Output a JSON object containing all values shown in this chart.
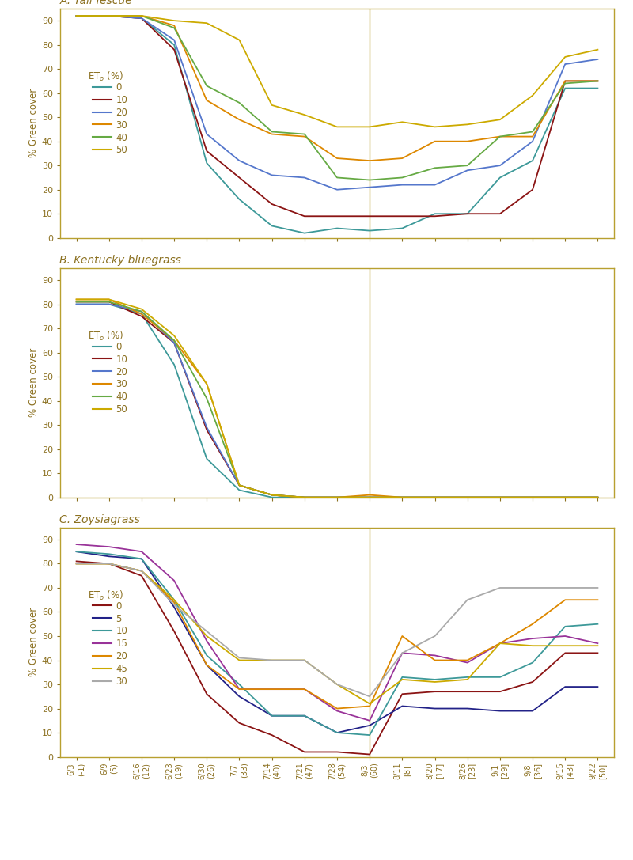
{
  "x_labels": [
    "6/3\n(-1)",
    "6/9\n(5)",
    "6/16\n(12)",
    "6/23\n(19)",
    "6/30\n(26)",
    "7/7\n(33)",
    "7/14\n(40)",
    "7/21\n(47)",
    "7/28\n(54)",
    "8/3\n(60)",
    "8/11\n[8]",
    "8/20\n[17]",
    "8/26\n[23]",
    "9/1\n[29]",
    "9/8\n[36]",
    "9/15\n[43]",
    "9/22\n[50]"
  ],
  "vline_index": 9,
  "panel_A": {
    "title": "A. Tall fescue",
    "series": {
      "0": [
        92,
        92,
        91,
        80,
        31,
        16,
        5,
        2,
        4,
        3,
        4,
        10,
        10,
        25,
        32,
        62,
        62
      ],
      "10": [
        92,
        92,
        91,
        78,
        36,
        25,
        14,
        9,
        9,
        9,
        9,
        9,
        10,
        10,
        20,
        65,
        65
      ],
      "20": [
        92,
        92,
        91,
        82,
        43,
        32,
        26,
        25,
        20,
        21,
        22,
        22,
        28,
        30,
        40,
        72,
        74
      ],
      "30": [
        92,
        92,
        92,
        88,
        57,
        49,
        43,
        42,
        33,
        32,
        33,
        40,
        40,
        42,
        42,
        65,
        65
      ],
      "40": [
        92,
        92,
        92,
        87,
        63,
        56,
        44,
        43,
        25,
        24,
        25,
        29,
        30,
        42,
        44,
        64,
        65
      ],
      "50": [
        92,
        92,
        92,
        90,
        89,
        82,
        55,
        51,
        46,
        46,
        48,
        46,
        47,
        49,
        59,
        75,
        78
      ]
    },
    "colors": {
      "0": "#3d9999",
      "10": "#8b1414",
      "20": "#5577cc",
      "30": "#dd8800",
      "40": "#66aa44",
      "50": "#ccaa00"
    },
    "legend_labels": [
      "0",
      "10",
      "20",
      "30",
      "40",
      "50"
    ]
  },
  "panel_B": {
    "title": "B. Kentucky bluegrass",
    "series": {
      "0": [
        80,
        80,
        76,
        55,
        16,
        3,
        0,
        0,
        0,
        0,
        0,
        0,
        0,
        0,
        0,
        0,
        0
      ],
      "10": [
        81,
        81,
        75,
        64,
        28,
        5,
        1,
        0,
        0,
        0,
        0,
        0,
        0,
        0,
        0,
        0,
        0
      ],
      "20": [
        80,
        80,
        77,
        64,
        29,
        5,
        1,
        0,
        0,
        0,
        0,
        0,
        0,
        0,
        0,
        0,
        0
      ],
      "30": [
        82,
        82,
        76,
        65,
        47,
        5,
        1,
        0,
        0,
        1,
        0,
        0,
        0,
        0,
        0,
        0,
        0
      ],
      "40": [
        81,
        81,
        77,
        65,
        41,
        5,
        1,
        0,
        0,
        0,
        0,
        0,
        0,
        0,
        0,
        0,
        0
      ],
      "50": [
        82,
        82,
        78,
        67,
        47,
        5,
        1,
        0,
        0,
        0,
        0,
        0,
        0,
        0,
        0,
        0,
        0
      ]
    },
    "colors": {
      "0": "#3d9999",
      "10": "#8b1414",
      "20": "#5577cc",
      "30": "#dd8800",
      "40": "#66aa44",
      "50": "#ccaa00"
    },
    "legend_labels": [
      "0",
      "10",
      "20",
      "30",
      "40",
      "50"
    ]
  },
  "panel_C": {
    "title": "C. Zoysiagrass",
    "series": {
      "0": [
        81,
        80,
        75,
        52,
        26,
        14,
        9,
        2,
        2,
        1,
        26,
        27,
        27,
        27,
        31,
        43,
        43
      ],
      "5": [
        85,
        83,
        82,
        62,
        38,
        25,
        17,
        17,
        10,
        13,
        21,
        20,
        20,
        19,
        19,
        29,
        29
      ],
      "10": [
        85,
        84,
        82,
        65,
        42,
        30,
        17,
        17,
        10,
        9,
        33,
        32,
        33,
        33,
        39,
        54,
        55
      ],
      "15": [
        88,
        87,
        85,
        73,
        48,
        28,
        28,
        28,
        19,
        15,
        43,
        42,
        39,
        47,
        49,
        50,
        47
      ],
      "20": [
        80,
        80,
        77,
        64,
        38,
        28,
        28,
        28,
        20,
        21,
        50,
        40,
        40,
        47,
        55,
        65,
        65
      ],
      "45": [
        80,
        80,
        77,
        65,
        50,
        40,
        40,
        40,
        30,
        22,
        32,
        31,
        32,
        47,
        46,
        46,
        46
      ],
      "30": [
        80,
        80,
        77,
        63,
        52,
        41,
        40,
        40,
        30,
        25,
        43,
        50,
        65,
        70,
        70,
        70,
        70
      ]
    },
    "colors": {
      "0": "#8b1414",
      "5": "#222288",
      "10": "#3d9999",
      "15": "#993399",
      "20": "#dd8800",
      "45": "#ccaa00",
      "30": "#aaaaaa"
    },
    "legend_labels": [
      "0",
      "5",
      "10",
      "15",
      "20",
      "45",
      "30"
    ]
  },
  "ylim": [
    0,
    95
  ],
  "yticks": [
    0,
    10,
    20,
    30,
    40,
    50,
    60,
    70,
    80,
    90
  ],
  "background_color": "#ffffff",
  "panel_border_color": "#b8a030",
  "vline_color": "#b8a030",
  "text_color": "#8b7020",
  "axis_color": "#b8a030",
  "ylabel": "% Green cover"
}
